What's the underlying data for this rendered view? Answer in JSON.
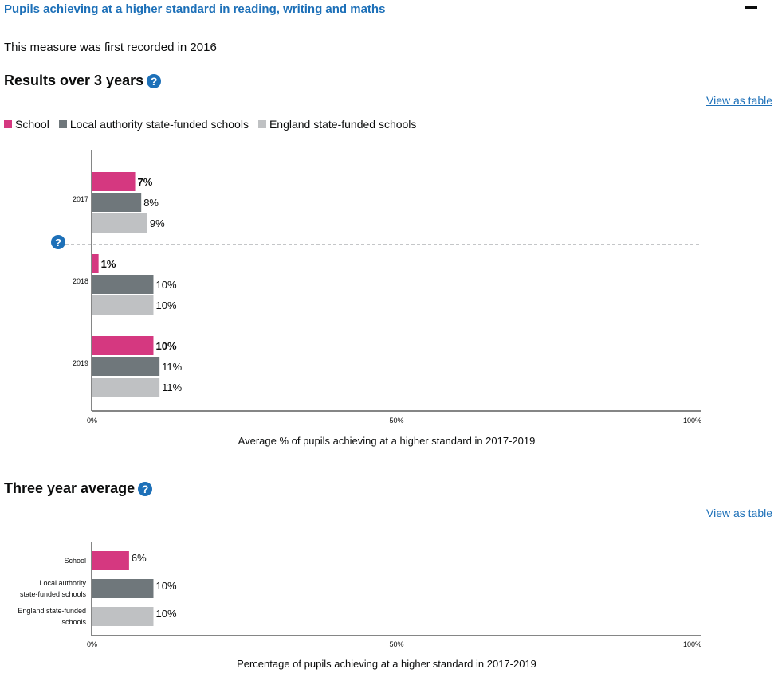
{
  "section": {
    "title": "Pupils achieving at a higher standard in reading, writing and maths",
    "intro": "This measure was first recorded in 2016"
  },
  "colors": {
    "school": "#d53880",
    "local_authority": "#6f777b",
    "england": "#bfc1c3",
    "link": "#1d70b8"
  },
  "results": {
    "heading": "Results over 3 years",
    "view_table_label": "View as table"
  },
  "average": {
    "heading": "Three year average",
    "view_table_label": "View as table"
  },
  "help_icon": "question-mark-icon",
  "chart_data": [
    {
      "type": "bar",
      "orientation": "horizontal",
      "categories": [
        "2017",
        "2018",
        "2019"
      ],
      "series": [
        {
          "name": "School",
          "values": [
            7,
            1,
            10
          ]
        },
        {
          "name": "Local authority state-funded schools",
          "values": [
            8,
            10,
            11
          ]
        },
        {
          "name": "England state-funded schools",
          "values": [
            9,
            10,
            11
          ]
        }
      ],
      "data_labels": [
        [
          "7%",
          "1%",
          "10%"
        ],
        [
          "8%",
          "10%",
          "11%"
        ],
        [
          "9%",
          "10%",
          "11%"
        ]
      ],
      "xlabel": "Average % of pupils achieving at a higher standard in 2017-2019",
      "xlim": [
        0,
        100
      ],
      "xticks": [
        "0%",
        "50%",
        "100%"
      ],
      "legend_position": "top-left",
      "annotation": "dashed line between 2017 and 2018 with help icon"
    },
    {
      "type": "bar",
      "orientation": "horizontal",
      "categories": [
        [
          "School"
        ],
        [
          "Local authority",
          "state-funded schools"
        ],
        [
          "England state-funded",
          "schools"
        ]
      ],
      "values": [
        6,
        10,
        10
      ],
      "data_labels": [
        "6%",
        "10%",
        "10%"
      ],
      "xlabel": "Percentage of pupils achieving at a higher standard in 2017-2019",
      "xlim": [
        0,
        100
      ],
      "xticks": [
        "0%",
        "50%",
        "100%"
      ]
    }
  ]
}
